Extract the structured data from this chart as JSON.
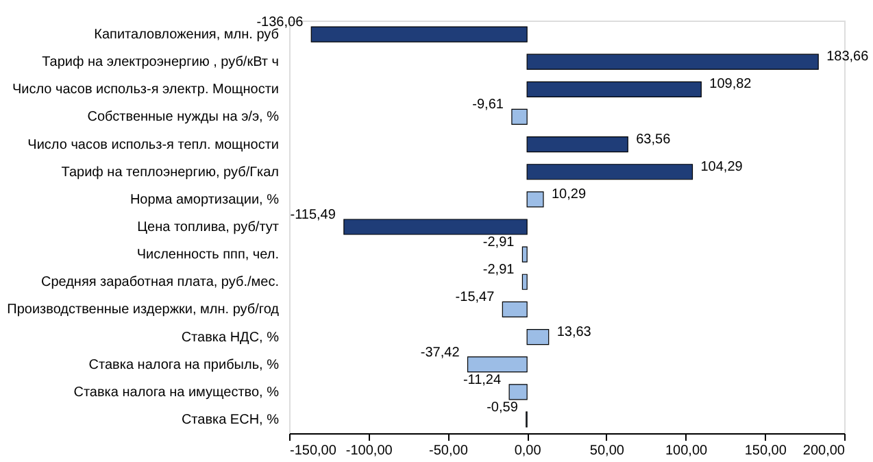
{
  "chart_data": {
    "type": "bar",
    "orientation": "horizontal",
    "categories": [
      "Капиталовложения, млн. руб",
      "Тариф на электроэнергию , руб/кВт ч",
      "Число часов использ-я электр. Мощности",
      "Собственные нужды на э/э, %",
      "Число часов использ-я тепл. мощности",
      "Тариф на теплоэнергию, руб/Гкал",
      "Норма амортизации, %",
      "Цена топлива, руб/тут",
      "Численность ппп, чел.",
      "Средняя заработная плата, руб./мес.",
      "Производственные издержки, млн. руб/год",
      "Ставка НДС, %",
      "Ставка налога на прибыль, %",
      "Ставка налога на имущество, %",
      "Ставка ЕСН, %"
    ],
    "values": [
      -136.06,
      183.66,
      109.82,
      -9.61,
      63.56,
      104.29,
      10.29,
      -115.49,
      -2.91,
      -2.91,
      -15.47,
      13.63,
      -37.42,
      -11.24,
      -0.59
    ],
    "value_labels": [
      "-136,06",
      "183,66",
      "109,82",
      "-9,61",
      "63,56",
      "104,29",
      "10,29",
      "-115,49",
      "-2,91",
      "-2,91",
      "-15,47",
      "13,63",
      "-37,42",
      "-11,24",
      "-0,59"
    ],
    "colors": [
      "#1f3d78",
      "#1f3d78",
      "#1f3d78",
      "#9cbde6",
      "#1f3d78",
      "#1f3d78",
      "#9cbde6",
      "#1f3d78",
      "#9cbde6",
      "#9cbde6",
      "#9cbde6",
      "#9cbde6",
      "#9cbde6",
      "#9cbde6",
      "#9cbde6"
    ],
    "xlim": [
      -150,
      200
    ],
    "xticks": [
      {
        "value": -150,
        "label": "-150,00"
      },
      {
        "value": -100,
        "label": "-100,00"
      },
      {
        "value": -50,
        "label": "-50,00"
      },
      {
        "value": 0,
        "label": "0,00"
      },
      {
        "value": 50,
        "label": "50,00"
      },
      {
        "value": 100,
        "label": "100,00"
      },
      {
        "value": 150,
        "label": "150,00"
      },
      {
        "value": 200,
        "label": "200,00"
      }
    ],
    "grid": false
  }
}
